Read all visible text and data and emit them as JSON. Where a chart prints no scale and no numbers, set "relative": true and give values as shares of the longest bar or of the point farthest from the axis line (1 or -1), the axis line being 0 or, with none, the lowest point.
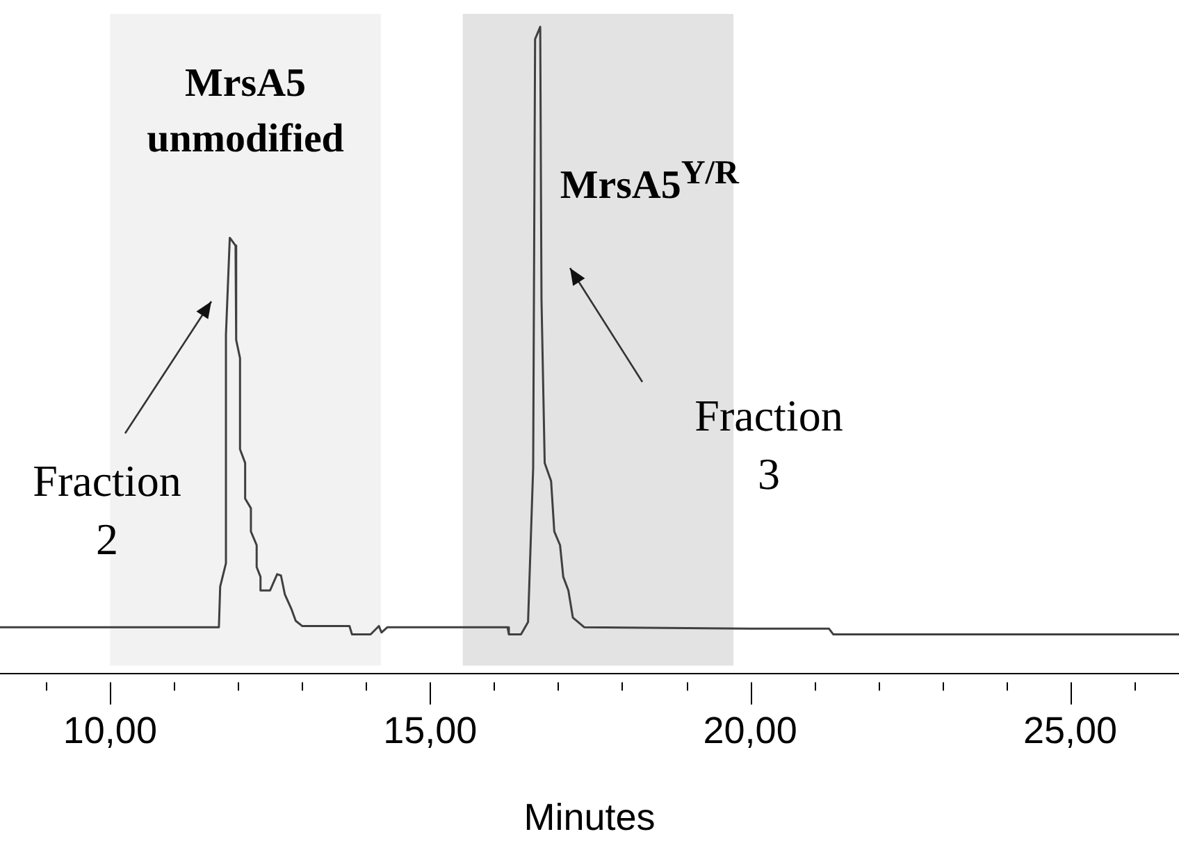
{
  "chart_data": {
    "type": "line",
    "relative": true,
    "xlabel": "Minutes",
    "xlim": [
      8.28,
      26.7
    ],
    "xticks": [
      {
        "value": 9,
        "label": null
      },
      {
        "value": 10,
        "label": "10,00"
      },
      {
        "value": 11,
        "label": null
      },
      {
        "value": 12,
        "label": null
      },
      {
        "value": 13,
        "label": null
      },
      {
        "value": 14,
        "label": null
      },
      {
        "value": 15,
        "label": "15,00"
      },
      {
        "value": 16,
        "label": null
      },
      {
        "value": 17,
        "label": null
      },
      {
        "value": 18,
        "label": null
      },
      {
        "value": 19,
        "label": null
      },
      {
        "value": 20,
        "label": "20,00"
      },
      {
        "value": 21,
        "label": null
      },
      {
        "value": 22,
        "label": null
      },
      {
        "value": 23,
        "label": null
      },
      {
        "value": 24,
        "label": null
      },
      {
        "value": 25,
        "label": "25,00"
      },
      {
        "value": 26,
        "label": null
      }
    ],
    "grid": false,
    "legend": false,
    "marker": "none",
    "line_style": "solid",
    "series": [
      {
        "color": "#404040",
        "x": [
          8.28,
          11.7,
          11.72,
          11.81,
          11.81,
          11.87,
          11.96,
          11.97,
          12.03,
          12.03,
          12.11,
          12.11,
          12.2,
          12.2,
          12.29,
          12.29,
          12.35,
          12.35,
          12.5,
          12.61,
          12.67,
          12.73,
          12.83,
          12.9,
          13.0,
          13.74,
          13.78,
          14.07,
          14.2,
          14.24,
          14.33,
          16.21,
          16.23,
          16.42,
          16.53,
          16.61,
          16.64,
          16.72,
          16.74,
          16.79,
          16.89,
          16.94,
          17.03,
          17.08,
          17.16,
          17.23,
          17.41,
          20.02,
          21.23,
          21.3,
          26.7
        ],
        "values": [
          0.072,
          0.072,
          0.135,
          0.171,
          0.524,
          0.674,
          0.662,
          0.516,
          0.488,
          0.347,
          0.326,
          0.271,
          0.256,
          0.22,
          0.199,
          0.165,
          0.15,
          0.129,
          0.129,
          0.154,
          0.152,
          0.123,
          0.101,
          0.082,
          0.074,
          0.074,
          0.061,
          0.061,
          0.074,
          0.064,
          0.072,
          0.072,
          0.061,
          0.061,
          0.08,
          0.319,
          0.981,
          1.0,
          0.579,
          0.326,
          0.298,
          0.22,
          0.199,
          0.15,
          0.129,
          0.087,
          0.072,
          0.07,
          0.07,
          0.061,
          0.061
        ]
      }
    ],
    "bands": [
      {
        "axis": "x",
        "from": 10.0,
        "to": 14.23,
        "label": "MrsA5 unmodified",
        "color": "#f2f2f2"
      },
      {
        "axis": "x",
        "from": 15.51,
        "to": 19.74,
        "label": "MrsA5$^{Y/R}$",
        "color": "#e3e3e3"
      }
    ],
    "annotations": [
      "Fraction 2",
      "Fraction 3"
    ]
  }
}
